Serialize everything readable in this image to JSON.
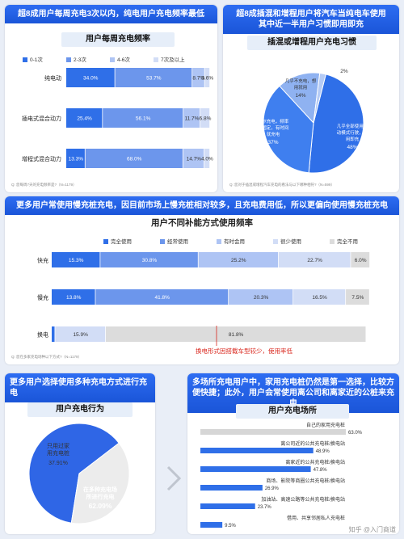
{
  "colors": {
    "c1": "#2f6fe8",
    "c2": "#6c96ec",
    "c3": "#aec4f4",
    "c4": "#d2ddf6",
    "c5": "#dcdcdc",
    "accent_red": "#d9261c"
  },
  "panel1": {
    "header": "超8成用户每周充电3次以内，纯电用户充电频率最低",
    "chart_title": "用户每周充电频率",
    "note": "Q: 您每周7天的充电频率是?（N=1179）"
  },
  "panel2": {
    "header": "超8成插混和增程用户将汽车当纯电车使用\n其中近一半用户习惯即用即充",
    "chart_title": "插混或增程用户充电习惯",
    "note": "Q: 您对于插混或增程汽车充电的看法与以下哪种相符?（N=599）"
  },
  "panel3": {
    "header": "更多用户常使用慢充桩充电，因目前市场上慢充桩相对较多，且充电费用低，所以更偏向使用慢充桩充电",
    "chart_title": "用户不同补能方式使用频率",
    "note": "Q: 您在多家充电场种以下方式?（N=1179）",
    "annotation": "换电形式因搭载车型较少，使用率低"
  },
  "panel4": {
    "header": "更多用户选择使用多种充电方式进行充电",
    "chart_title": "用户充电行为"
  },
  "panel5": {
    "header": "多场所充电用户中，家用充电桩仍然是第一选择，比较方便快捷；此外，用户会常使用离公司和离家近的公桩来充电",
    "chart_title": "用户充电场所"
  },
  "watermark": "知乎 @入门商道",
  "chart_data": [
    {
      "type": "bar",
      "stacked": true,
      "orientation": "horizontal",
      "title": "用户每周充电频率",
      "categories": [
        "纯电动",
        "插电式混合动力",
        "增程式混合动力"
      ],
      "series": [
        {
          "name": "0-1次",
          "values": [
            34.0,
            25.4,
            13.3
          ]
        },
        {
          "name": "2-3次",
          "values": [
            53.7,
            56.1,
            68.0
          ]
        },
        {
          "name": "4-6次",
          "values": [
            8.7,
            11.7,
            14.7
          ]
        },
        {
          "name": "7次及以上",
          "values": [
            3.6,
            6.8,
            4.0
          ]
        }
      ],
      "legend": "top"
    },
    {
      "type": "pie",
      "title": "插混或增程用户充电习惯",
      "slices": [
        {
          "label": "几乎全部使用电动模式行驶，即用即充",
          "value": 48
        },
        {
          "label": "偶尔充电，频率不固定，有时间就充电",
          "value": 37
        },
        {
          "label": "几乎不充电，想用就用",
          "value": 14
        },
        {
          "label": "",
          "value": 2
        }
      ]
    },
    {
      "type": "bar",
      "stacked": true,
      "orientation": "horizontal",
      "title": "用户不同补能方式使用频率",
      "categories": [
        "快充",
        "慢充",
        "换电"
      ],
      "series": [
        {
          "name": "完全使用",
          "values": [
            15.3,
            13.8,
            1.1
          ]
        },
        {
          "name": "经常使用",
          "values": [
            30.8,
            41.8,
            0
          ]
        },
        {
          "name": "有时会用",
          "values": [
            25.2,
            20.3,
            0
          ]
        },
        {
          "name": "很少使用",
          "values": [
            22.7,
            16.5,
            15.9
          ]
        },
        {
          "name": "完全不用",
          "values": [
            6.0,
            7.5,
            81.8
          ]
        }
      ],
      "legend": "top"
    },
    {
      "type": "pie",
      "title": "用户充电行为",
      "slices": [
        {
          "label": "在多种充电场所进行充电",
          "value": 62.09
        },
        {
          "label": "只用过家用充电桩",
          "value": 37.91
        }
      ]
    },
    {
      "type": "bar",
      "orientation": "horizontal",
      "title": "用户充电场所",
      "categories": [
        "自己的家用充电桩",
        "离公司近的公共充电桩/换电站",
        "离家近的公共充电桩/换电站",
        "商场、影院等商圈公共充电桩/换电站",
        "加油站、高速公路等公共充电桩/换电站",
        "借用、共享邻居私人充电桩"
      ],
      "values": [
        63.0,
        48.9,
        47.8,
        26.9,
        23.7,
        9.5
      ],
      "unit": "%"
    }
  ]
}
